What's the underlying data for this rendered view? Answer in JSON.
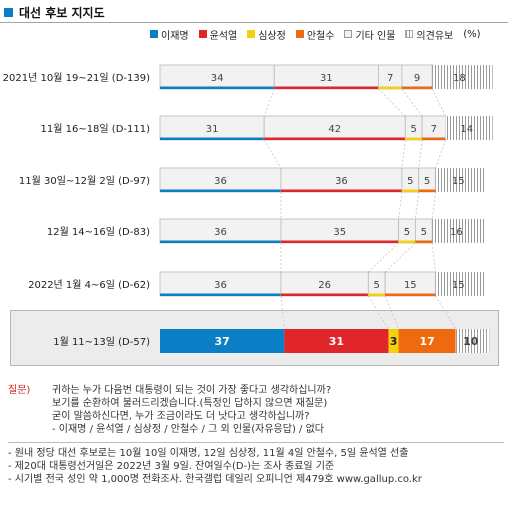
{
  "title": "대선 후보 지지도",
  "legend": {
    "items": [
      {
        "label": "이재명",
        "color": "#0b7fc5"
      },
      {
        "label": "윤석열",
        "color": "#e0252b"
      },
      {
        "label": "심상정",
        "color": "#f5d10b"
      },
      {
        "label": "안철수",
        "color": "#ef6a0f"
      },
      {
        "label": "기타 인물",
        "color": "#f2f2f2"
      },
      {
        "label": "의견유보",
        "color": "hatch"
      }
    ],
    "unit": "(%)"
  },
  "chart_data": {
    "type": "bar",
    "stacked": true,
    "orientation": "horizontal",
    "categories": [
      "2021년 10월 19~21일 (D-139)",
      "11월 16~18일 (D-111)",
      "11월 30일~12월 2일 (D-97)",
      "12월 14~16일 (D-83)",
      "2022년 1월 4~6일 (D-62)",
      "1월 11~13일 (D-57)"
    ],
    "series": [
      {
        "name": "이재명",
        "values": [
          34,
          31,
          36,
          36,
          36,
          37
        ]
      },
      {
        "name": "윤석열",
        "values": [
          31,
          42,
          36,
          35,
          26,
          31
        ]
      },
      {
        "name": "심상정",
        "values": [
          7,
          5,
          5,
          5,
          5,
          3
        ]
      },
      {
        "name": "안철수",
        "values": [
          9,
          7,
          5,
          5,
          15,
          17
        ]
      },
      {
        "name": "기타 인물",
        "values": [
          0,
          0,
          0,
          0,
          0,
          0
        ]
      },
      {
        "name": "의견유보",
        "values": [
          18,
          14,
          15,
          16,
          15,
          10
        ]
      }
    ],
    "highlight_index": 5,
    "grid": false
  },
  "question": {
    "label": "질문)",
    "lines": [
      "귀하는 누가 다음번 대통령이 되는 것이 가장 좋다고 생각하십니까?",
      "보기를 순환하여 불러드리겠습니다.(특정인 답하지 않으면 재질문)",
      "굳이 말씀하신다면, 누가 조금이라도 더 낫다고 생각하십니까?",
      "- 이재명 / 윤석열 / 심상정 / 안철수 / 그 외 인물(자유응답) / 없다"
    ]
  },
  "notes": [
    "- 원내 정당 대선 후보로는 10월 10일 이재명, 12일 심상정, 11월 4일 안철수, 5일 윤석열 선출",
    "- 제20대 대통령선거일은 2022년 3월 9일. 잔여일수(D-)는 조사 종료일 기준",
    "- 시기별 전국 성인 약 1,000명 전화조사. 한국갤럽 데일리 오피니언 제479호 www.gallup.co.kr"
  ]
}
